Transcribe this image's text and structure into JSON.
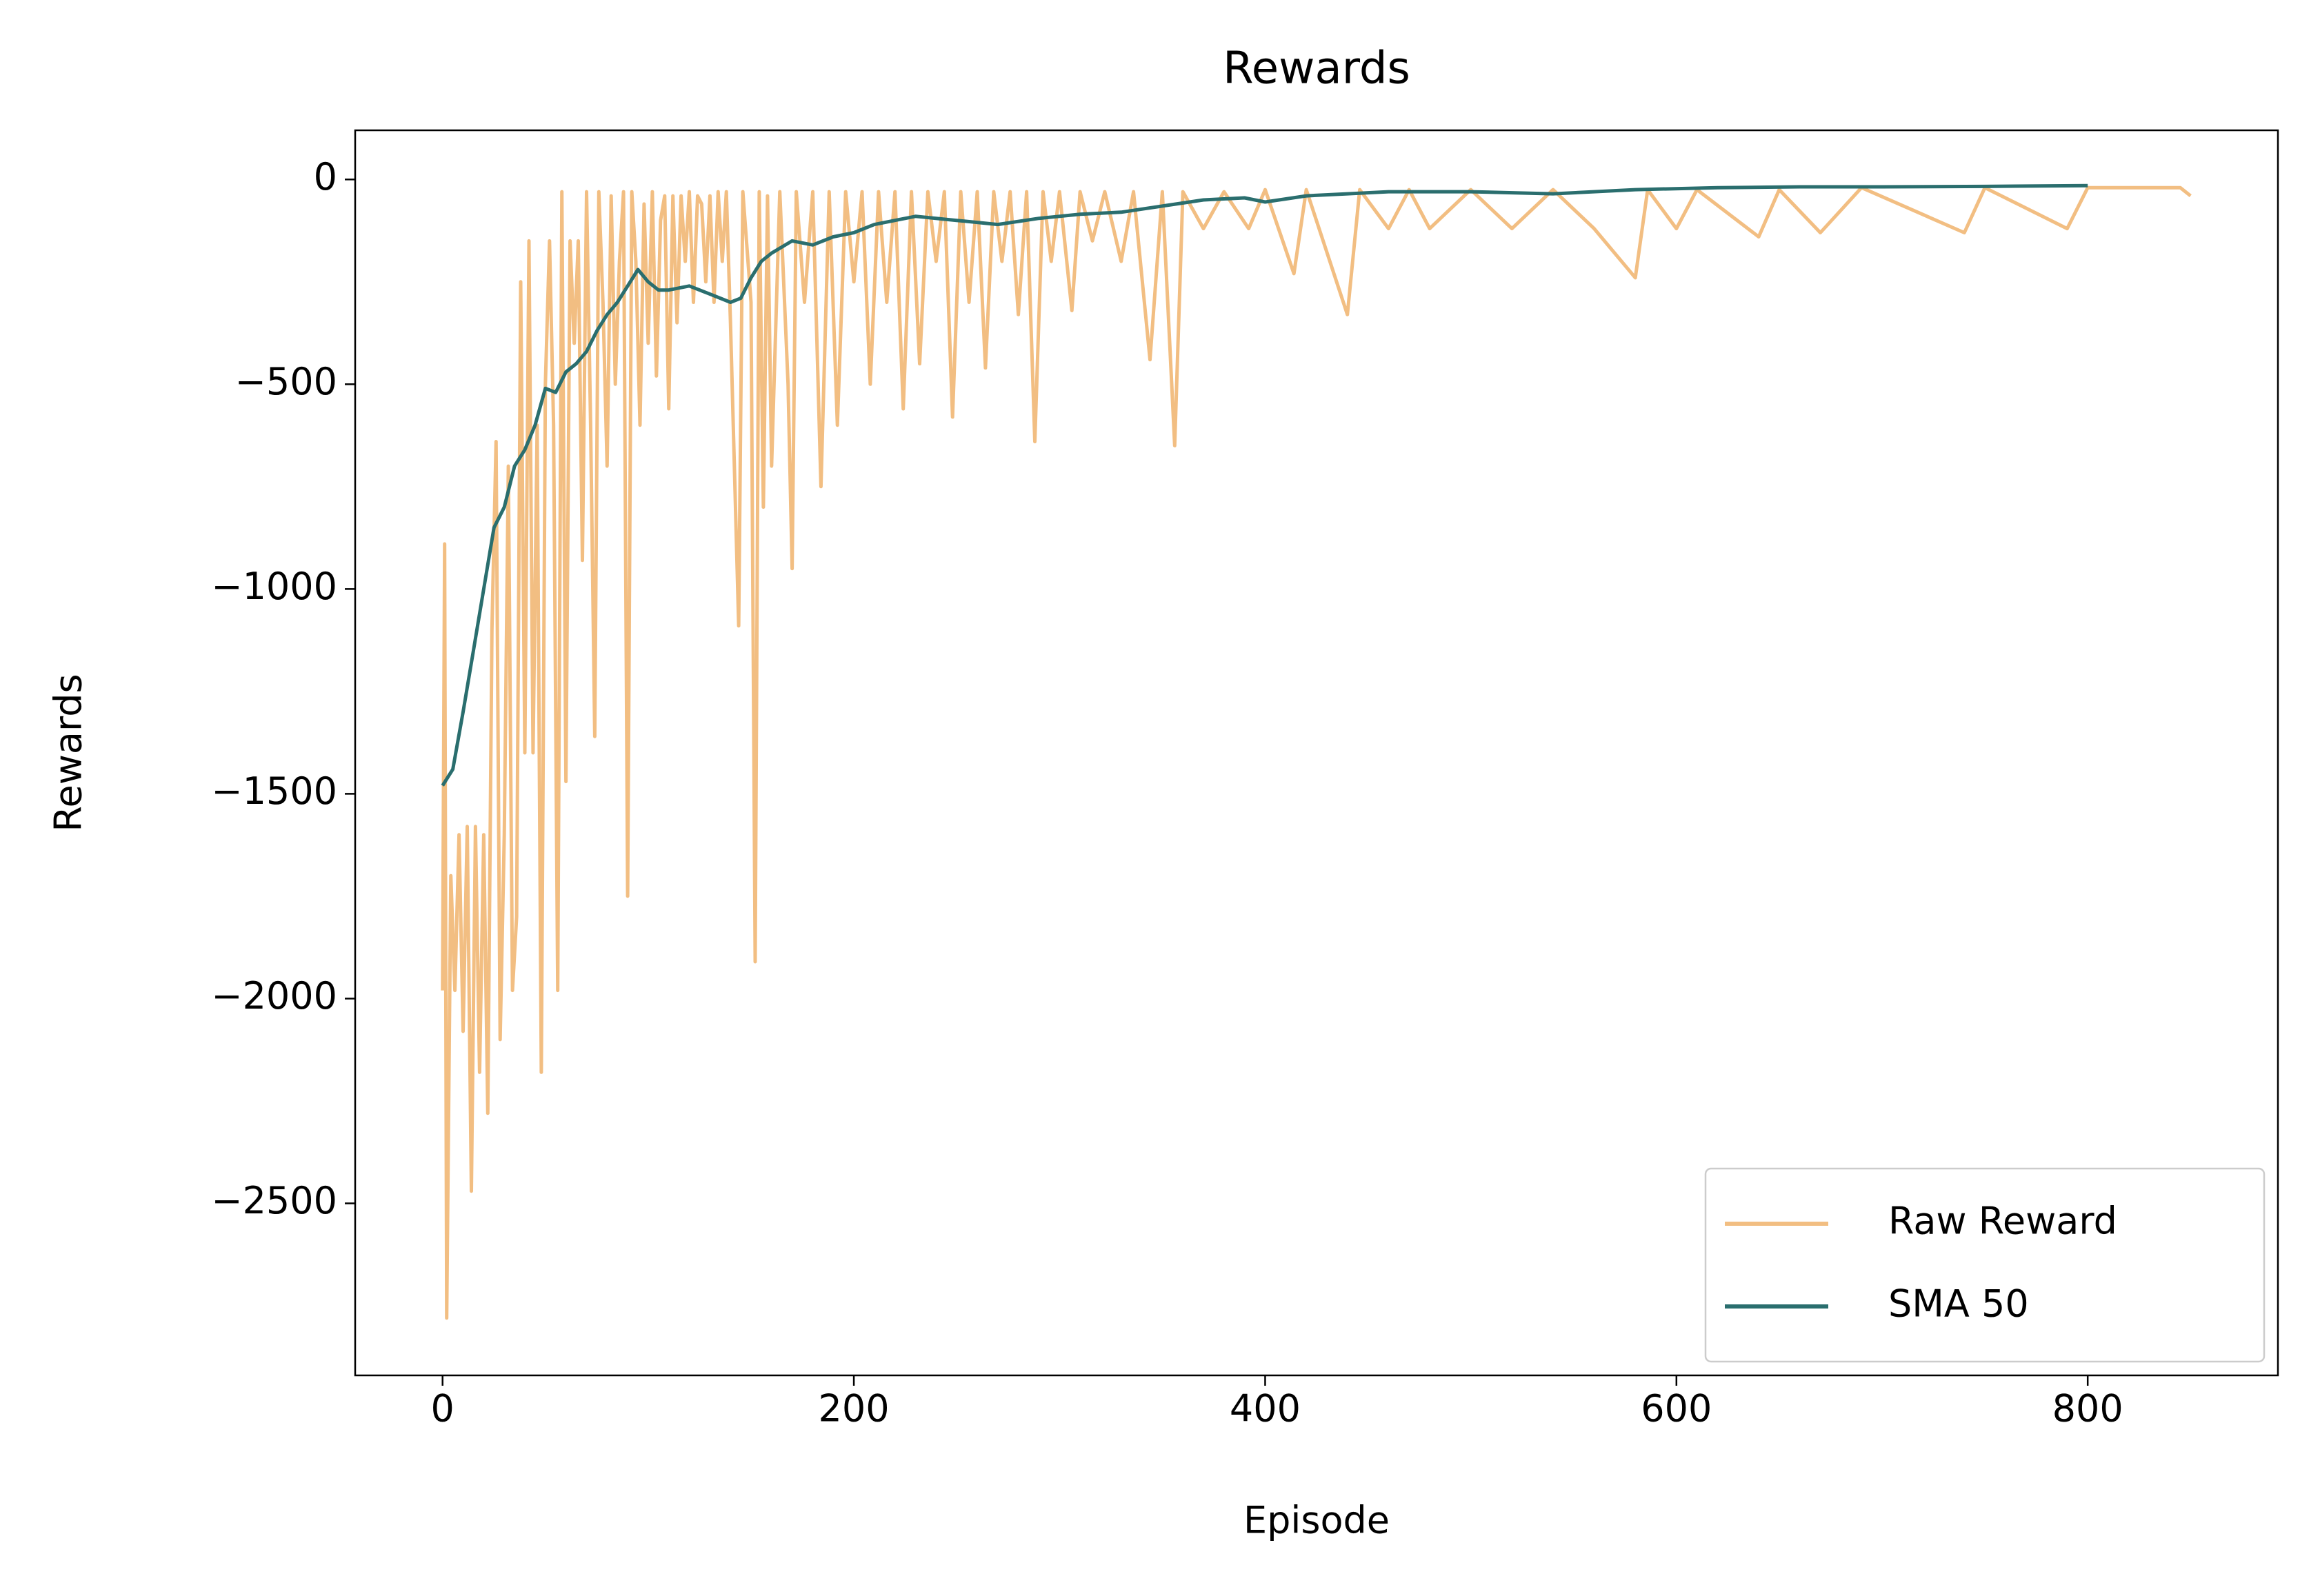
{
  "chart_data": {
    "type": "line",
    "title": "Rewards",
    "x_label": "Episode",
    "y_label": "Rewards",
    "xlim": [
      -42.5,
      892.5
    ],
    "xticks": [
      0,
      200,
      400,
      600,
      800
    ],
    "ylim": [
      -2920,
      120
    ],
    "yticks": [
      {
        "value": -2500,
        "label": "−2500"
      },
      {
        "value": -2000,
        "label": "−2000"
      },
      {
        "value": -1500,
        "label": "−1500"
      },
      {
        "value": -1000,
        "label": "−1000"
      },
      {
        "value": -500,
        "label": "−500"
      },
      0
    ],
    "legend": "lower right",
    "series": [
      {
        "name": "Raw Reward",
        "color": "#f2be82",
        "x": [
          0,
          1,
          2,
          4,
          6,
          8,
          10,
          12,
          14,
          16,
          18,
          20,
          22,
          24,
          26,
          28,
          30,
          32,
          34,
          36,
          38,
          40,
          42,
          44,
          46,
          48,
          50,
          52,
          54,
          56,
          58,
          60,
          62,
          64,
          66,
          68,
          70,
          72,
          74,
          76,
          78,
          80,
          82,
          84,
          86,
          88,
          90,
          92,
          94,
          96,
          98,
          100,
          102,
          104,
          106,
          108,
          110,
          112,
          114,
          116,
          118,
          120,
          122,
          124,
          126,
          128,
          130,
          132,
          134,
          136,
          138,
          140,
          144,
          146,
          150,
          152,
          154,
          156,
          158,
          160,
          164,
          168,
          170,
          172,
          176,
          180,
          184,
          188,
          192,
          196,
          200,
          204,
          208,
          212,
          216,
          220,
          224,
          228,
          232,
          236,
          240,
          244,
          248,
          252,
          256,
          260,
          264,
          268,
          272,
          276,
          280,
          284,
          288,
          292,
          296,
          300,
          306,
          310,
          316,
          322,
          330,
          336,
          344,
          350,
          356,
          360,
          370,
          380,
          392,
          400,
          414,
          420,
          440,
          446,
          460,
          470,
          480,
          500,
          520,
          540,
          560,
          580,
          586,
          600,
          610,
          640,
          650,
          670,
          690,
          740,
          750,
          790,
          800,
          845,
          850
        ],
        "values": [
          -1980,
          -890,
          -2780,
          -1700,
          -1980,
          -1600,
          -2080,
          -1580,
          -2470,
          -1580,
          -2180,
          -1600,
          -2280,
          -1100,
          -640,
          -2100,
          -1600,
          -700,
          -1980,
          -1800,
          -250,
          -1400,
          -150,
          -1400,
          -600,
          -2180,
          -500,
          -150,
          -600,
          -1980,
          -30,
          -1470,
          -150,
          -400,
          -150,
          -930,
          -30,
          -600,
          -1360,
          -30,
          -300,
          -700,
          -40,
          -500,
          -200,
          -30,
          -1750,
          -30,
          -200,
          -600,
          -60,
          -400,
          -30,
          -480,
          -100,
          -40,
          -560,
          -40,
          -350,
          -40,
          -200,
          -30,
          -300,
          -40,
          -60,
          -250,
          -40,
          -300,
          -30,
          -200,
          -30,
          -350,
          -1090,
          -30,
          -300,
          -1910,
          -30,
          -800,
          -40,
          -700,
          -30,
          -500,
          -950,
          -30,
          -300,
          -30,
          -750,
          -30,
          -600,
          -30,
          -250,
          -30,
          -500,
          -30,
          -300,
          -30,
          -560,
          -30,
          -450,
          -30,
          -200,
          -30,
          -580,
          -30,
          -300,
          -30,
          -460,
          -30,
          -200,
          -30,
          -330,
          -30,
          -640,
          -30,
          -200,
          -30,
          -320,
          -30,
          -150,
          -30,
          -200,
          -30,
          -440,
          -30,
          -650,
          -30,
          -120,
          -30,
          -120,
          -25,
          -230,
          -25,
          -330,
          -25,
          -120,
          -25,
          -120,
          -25,
          -120,
          -25,
          -120,
          -240,
          -25,
          -120,
          -25,
          -140,
          -25,
          -130,
          -20,
          -130,
          -20,
          -120,
          -20,
          -20,
          -40
        ]
      },
      {
        "name": "SMA 50",
        "color": "#2a6e6e",
        "x": [
          0,
          5,
          10,
          15,
          20,
          25,
          30,
          35,
          40,
          45,
          50,
          55,
          60,
          65,
          70,
          75,
          80,
          85,
          90,
          95,
          100,
          105,
          110,
          120,
          130,
          140,
          145,
          150,
          155,
          160,
          170,
          180,
          190,
          200,
          210,
          220,
          230,
          250,
          270,
          290,
          310,
          330,
          350,
          370,
          390,
          400,
          420,
          440,
          460,
          500,
          540,
          580,
          620,
          660,
          700,
          750,
          800
        ],
        "values": [
          -1480,
          -1440,
          -1300,
          -1150,
          -1000,
          -850,
          -800,
          -700,
          -660,
          -600,
          -510,
          -520,
          -470,
          -450,
          -420,
          -370,
          -330,
          -300,
          -260,
          -220,
          -250,
          -270,
          -270,
          -260,
          -280,
          -300,
          -290,
          -240,
          -200,
          -180,
          -150,
          -160,
          -140,
          -130,
          -110,
          -100,
          -90,
          -100,
          -110,
          -95,
          -85,
          -80,
          -65,
          -50,
          -45,
          -55,
          -40,
          -35,
          -30,
          -30,
          -35,
          -25,
          -20,
          -18,
          -18,
          -17,
          -15
        ]
      }
    ]
  }
}
